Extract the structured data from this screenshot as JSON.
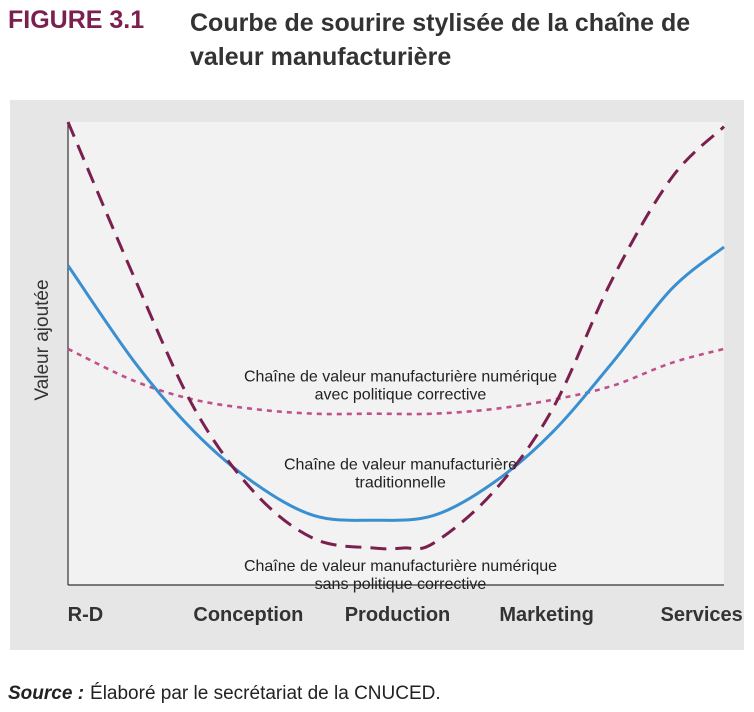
{
  "figure": {
    "label": "FIGURE 3.1",
    "title": "Courbe de sourire stylisée de la chaîne de valeur manufacturière"
  },
  "source": {
    "label": "Source :",
    "text": "Élaboré par le secrétariat de la CNUCED."
  },
  "chart_data": {
    "type": "line",
    "ylabel": "Valeur ajoutée",
    "xlabel": "",
    "categories": [
      "R-D",
      "Conception",
      "Production",
      "Marketing",
      "Services"
    ],
    "category_x": [
      0,
      1.16,
      2.16,
      3.16,
      4.2
    ],
    "xlim": [
      -0.05,
      4.35
    ],
    "ylim": [
      0,
      100
    ],
    "grid": false,
    "legend": "none",
    "series": [
      {
        "name": "Chaîne de valeur manufacturière traditionnelle",
        "color": "#3a8fd0",
        "style": "solid",
        "x": [
          -0.05,
          0.4,
          0.8,
          1.2,
          1.6,
          2.0,
          2.4,
          2.8,
          3.2,
          3.6,
          4.0,
          4.35
        ],
        "y": [
          69,
          48,
          33,
          22,
          15,
          14,
          15,
          22,
          33,
          48,
          64,
          73
        ]
      },
      {
        "name": "Chaîne de valeur manufacturière numérique sans politique corrective",
        "color": "#7a1f4e",
        "style": "dashed",
        "x": [
          -0.05,
          0.4,
          0.8,
          1.2,
          1.6,
          2.0,
          2.2,
          2.4,
          2.8,
          3.2,
          3.6,
          4.0,
          4.35
        ],
        "y": [
          100,
          66,
          38,
          20,
          10,
          8,
          8,
          9,
          20,
          38,
          66,
          88,
          99
        ]
      },
      {
        "name": "Chaîne de valeur manufacturière numérique avec politique corrective",
        "color": "#c0508a",
        "style": "dotted",
        "x": [
          -0.05,
          0.4,
          0.8,
          1.2,
          1.6,
          2.0,
          2.4,
          2.8,
          3.2,
          3.6,
          4.0,
          4.35
        ],
        "y": [
          51,
          44,
          40,
          38,
          37,
          37,
          37,
          38,
          40,
          43,
          48,
          51
        ]
      }
    ],
    "annotations": [
      {
        "lines": [
          "Chaîne de valeur manufacturière numérique",
          "avec politique corrective"
        ],
        "x": 2.16,
        "y": 44
      },
      {
        "lines": [
          "Chaîne de valeur manufacturière",
          "traditionnelle"
        ],
        "x": 2.16,
        "y": 25
      },
      {
        "lines": [
          "Chaîne de valeur manufacturière numérique",
          "sans politique corrective"
        ],
        "x": 2.16,
        "y": 3
      }
    ]
  }
}
